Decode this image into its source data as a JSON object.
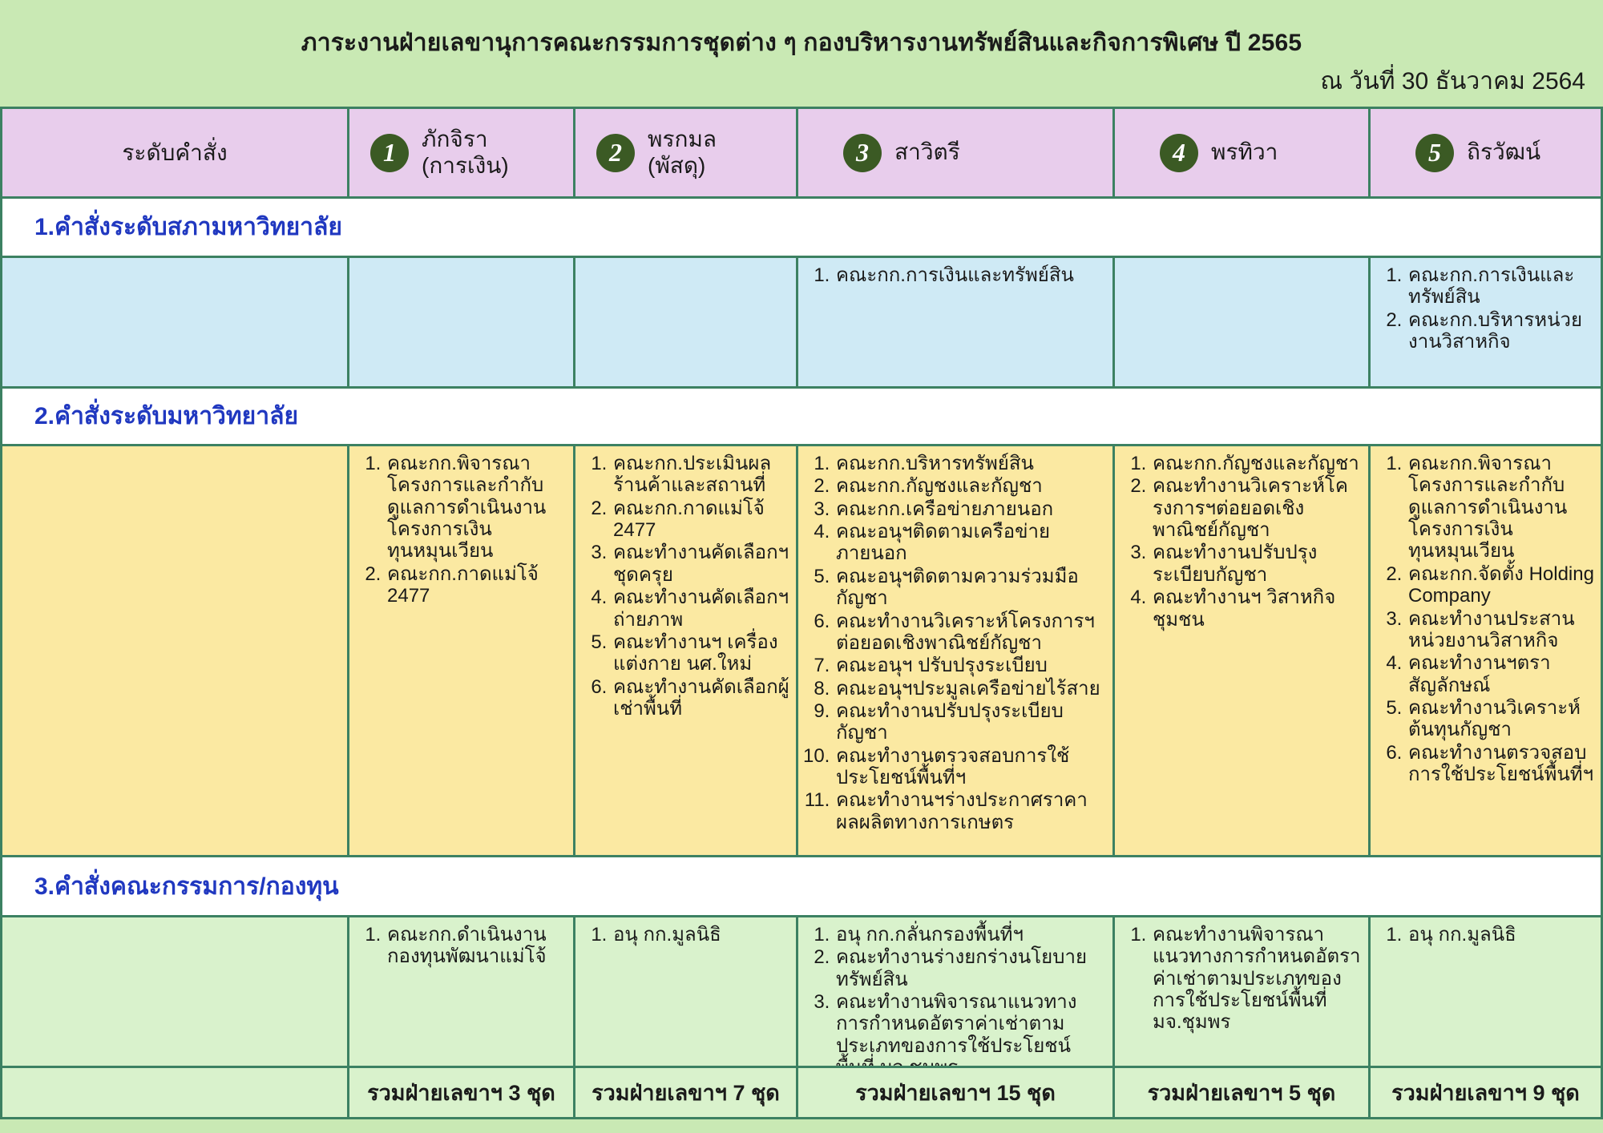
{
  "page": {
    "title": "ภาระงานฝ่ายเลขานุการคณะกรรมการชุดต่าง ๆ กองบริหารงานทรัพย์สินและกิจการพิเศษ ปี 2565",
    "date": "ณ วันที่ 30 ธันวาคม 2564"
  },
  "colors": {
    "page_background": "#c9e9b4",
    "header_cell": "#e8cdec",
    "badge": "#3b5a24",
    "border": "#3c8162",
    "section_label_blue": "#2038c0",
    "row_university_council": "#cfeaf5",
    "row_university": "#fbe9a2",
    "row_committee_fund": "#d9f2cc"
  },
  "table": {
    "first_col_header": "ระดับคำสั่ง",
    "people": [
      {
        "num": "1",
        "name": "ภักจิรา",
        "role": "(การเงิน)"
      },
      {
        "num": "2",
        "name": "พรกมล",
        "role": "(พัสดุ)"
      },
      {
        "num": "3",
        "name": "สาวิตรี",
        "role": ""
      },
      {
        "num": "4",
        "name": "พรทิวา",
        "role": ""
      },
      {
        "num": "5",
        "name": "ถิรวัฒน์",
        "role": ""
      }
    ],
    "sections": [
      {
        "label": "1.คำสั่งระดับสภามหาวิทยาลัย",
        "cells": [
          [],
          [],
          [
            "คณะกก.การเงินและทรัพย์สิน"
          ],
          [],
          [
            "คณะกก.การเงินและทรัพย์สิน",
            "คณะกก.บริหารหน่วยงานวิสาหกิจ"
          ]
        ]
      },
      {
        "label": "2.คำสั่งระดับมหาวิทยาลัย",
        "cells": [
          [
            "คณะกก.พิจารณาโครงการและกำกับดูแลการดำเนินงานโครงการเงินทุนหมุนเวียน",
            "คณะกก.กาดแม่โจ้ 2477"
          ],
          [
            "คณะกก.ประเมินผลร้านค้าและสถานที่",
            "คณะกก.กาดแม่โจ้ 2477",
            "คณะทำงานคัดเลือกฯ ชุดครุย",
            "คณะทำงานคัดเลือกฯ ถ่ายภาพ",
            "คณะทำงานฯ เครื่องแต่งกาย นศ.ใหม่",
            "คณะทำงานคัดเลือกผู้เช่าพื้นที่"
          ],
          [
            "คณะกก.บริหารทรัพย์สิน",
            "คณะกก.กัญชงและกัญชา",
            "คณะกก.เครือข่ายภายนอก",
            "คณะอนุฯติดตามเครือข่ายภายนอก",
            "คณะอนุฯติดตามความร่วมมือกัญชา",
            "คณะทำงานวิเคราะห์โครงการฯต่อยอดเชิงพาณิชย์กัญชา",
            "คณะอนุฯ ปรับปรุงระเบียบ",
            "คณะอนุฯประมูลเครือข่ายไร้สาย",
            "คณะทำงานปรับปรุงระเบียบกัญชา",
            "คณะทำงานตรวจสอบการใช้ประโยชน์พื้นที่ฯ",
            "คณะทำงานฯร่างประกาศราคาผลผลิตทางการเกษตร"
          ],
          [
            "คณะกก.กัญชงและกัญชา",
            "คณะทำงานวิเคราะห์โครงการฯต่อยอดเชิงพาณิชย์กัญชา",
            "คณะทำงานปรับปรุงระเบียบกัญชา",
            "คณะทำงานฯ วิสาหกิจชุมชน"
          ],
          [
            "คณะกก.พิจารณาโครงการและกำกับดูแลการดำเนินงานโครงการเงินทุนหมุนเวียน",
            "คณะกก.จัดตั้ง Holding Company",
            "คณะทำงานประสานหน่วยงานวิสาหกิจ",
            "คณะทำงานฯตราสัญลักษณ์",
            "คณะทำงานวิเคราะห์ต้นทุนกัญชา",
            "คณะทำงานตรวจสอบการใช้ประโยชน์พื้นที่ฯ"
          ]
        ]
      },
      {
        "label": "3.คำสั่งคณะกรรมการ/กองทุน",
        "cells": [
          [
            "คณะกก.ดำเนินงานกองทุนพัฒนาแม่โจ้"
          ],
          [
            "อนุ กก.มูลนิธิ"
          ],
          [
            "อนุ กก.กลั่นกรองพื้นที่ฯ",
            "คณะทำงานร่างยกร่างนโยบายทรัพย์สิน",
            "คณะทำงานพิจารณาแนวทางการกำหนดอัตราค่าเช่าตามประเภทของการใช้ประโยชน์พื้นที่ มจ.ชุมพร"
          ],
          [
            "คณะทำงานพิจารณาแนวทางการกำหนดอัตราค่าเช่าตามประเภทของการใช้ประโยชน์พื้นที่ มจ.ชุมพร"
          ],
          [
            "อนุ กก.มูลนิธิ"
          ]
        ]
      }
    ],
    "totals": [
      "รวมฝ่ายเลขาฯ 3 ชุด",
      "รวมฝ่ายเลขาฯ 7 ชุด",
      "รวมฝ่ายเลขาฯ 15 ชุด",
      "รวมฝ่ายเลขาฯ 5 ชุด",
      "รวมฝ่ายเลขาฯ 9 ชุด"
    ]
  }
}
